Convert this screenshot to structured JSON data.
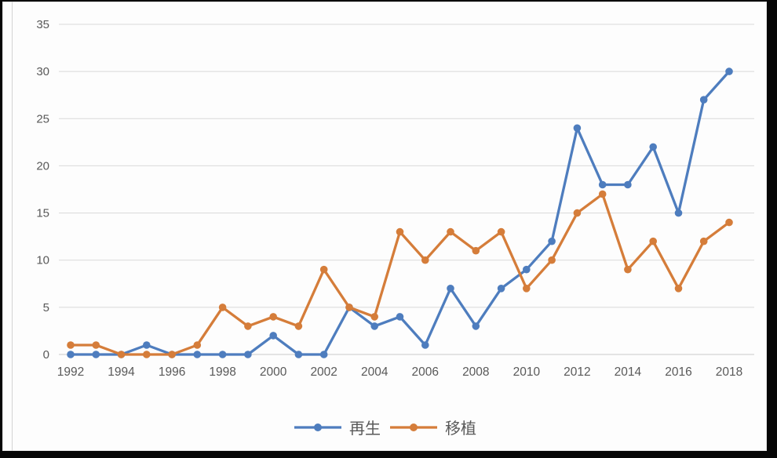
{
  "canvas": {
    "frame_color": "#060606",
    "card_color": "#fdfdfd"
  },
  "chart_data": {
    "type": "line",
    "title": "",
    "xlabel": "",
    "ylabel": "",
    "x": [
      1992,
      1993,
      1994,
      1995,
      1996,
      1997,
      1998,
      1999,
      2000,
      2001,
      2002,
      2003,
      2004,
      2005,
      2006,
      2007,
      2008,
      2009,
      2010,
      2011,
      2012,
      2013,
      2014,
      2015,
      2016,
      2017,
      2018
    ],
    "x_tick_labels": [
      "1992",
      "1994",
      "1996",
      "1998",
      "2000",
      "2002",
      "2004",
      "2006",
      "2008",
      "2010",
      "2012",
      "2014",
      "2016",
      "2018"
    ],
    "x_tick_step": 2,
    "y_ticks": [
      0,
      5,
      10,
      15,
      20,
      25,
      30,
      35
    ],
    "ylim": [
      0,
      35
    ],
    "grid": "horizontal",
    "gridline_color": "#d9d9d9",
    "axis_line_color": "#c9c9c9",
    "tick_label_color": "#595959",
    "legend_position": "bottom",
    "series": [
      {
        "name": "再生",
        "color": "#4e7dbe",
        "marker": "circle",
        "values": [
          0,
          0,
          0,
          1,
          0,
          0,
          0,
          0,
          2,
          0,
          0,
          5,
          3,
          4,
          1,
          7,
          3,
          7,
          9,
          12,
          24,
          18,
          18,
          22,
          15,
          27,
          30
        ]
      },
      {
        "name": "移植",
        "color": "#d57d3a",
        "marker": "circle",
        "values": [
          1,
          1,
          0,
          0,
          0,
          1,
          5,
          3,
          4,
          3,
          9,
          5,
          4,
          13,
          10,
          13,
          11,
          13,
          7,
          10,
          15,
          17,
          9,
          12,
          7,
          12,
          14
        ]
      }
    ]
  }
}
